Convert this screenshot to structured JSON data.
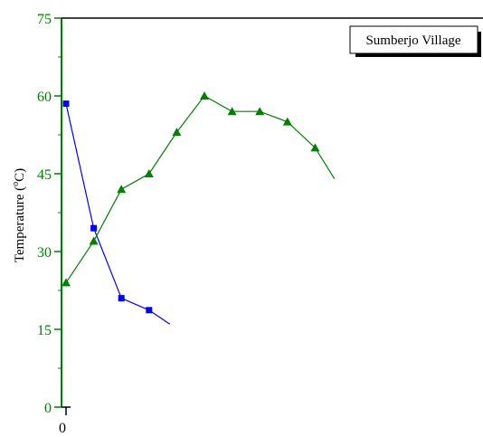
{
  "chart_data": {
    "type": "line",
    "title": "",
    "ylabel": "Temperature (ºC)",
    "ylabel_parts": {
      "prefix": "Temperature (",
      "superscript": "o",
      "suffix": "C)"
    },
    "xlabel": "",
    "ylim": [
      0,
      75
    ],
    "xlim": [
      0,
      16
    ],
    "y_ticks": [
      0,
      15,
      30,
      45,
      60,
      75
    ],
    "y_tick_labels": [
      "0",
      "15",
      "30",
      "45",
      "60",
      "75"
    ],
    "x_ticks": [
      0
    ],
    "x_tick_labels": [
      "0"
    ],
    "legend": {
      "text": "Sumberjo Village",
      "position": "top-right"
    },
    "series": [
      {
        "color": "#0000ff",
        "marker": "square",
        "points": [
          [
            0,
            58.5
          ],
          [
            1,
            34.5
          ],
          [
            2,
            21
          ],
          [
            3,
            18.7
          ]
        ],
        "tail_to": [
          3.75,
          16
        ]
      },
      {
        "color": "#008000",
        "marker": "triangle",
        "points": [
          [
            0,
            24
          ],
          [
            1,
            32
          ],
          [
            2,
            42
          ],
          [
            3,
            45
          ],
          [
            4,
            53
          ],
          [
            5,
            60
          ],
          [
            6,
            57
          ],
          [
            7,
            57
          ],
          [
            8,
            55
          ],
          [
            9,
            50
          ]
        ],
        "tail_to": [
          9.7,
          44
        ]
      }
    ],
    "axis_color": "#008000",
    "tick_label_color": "#008000"
  }
}
